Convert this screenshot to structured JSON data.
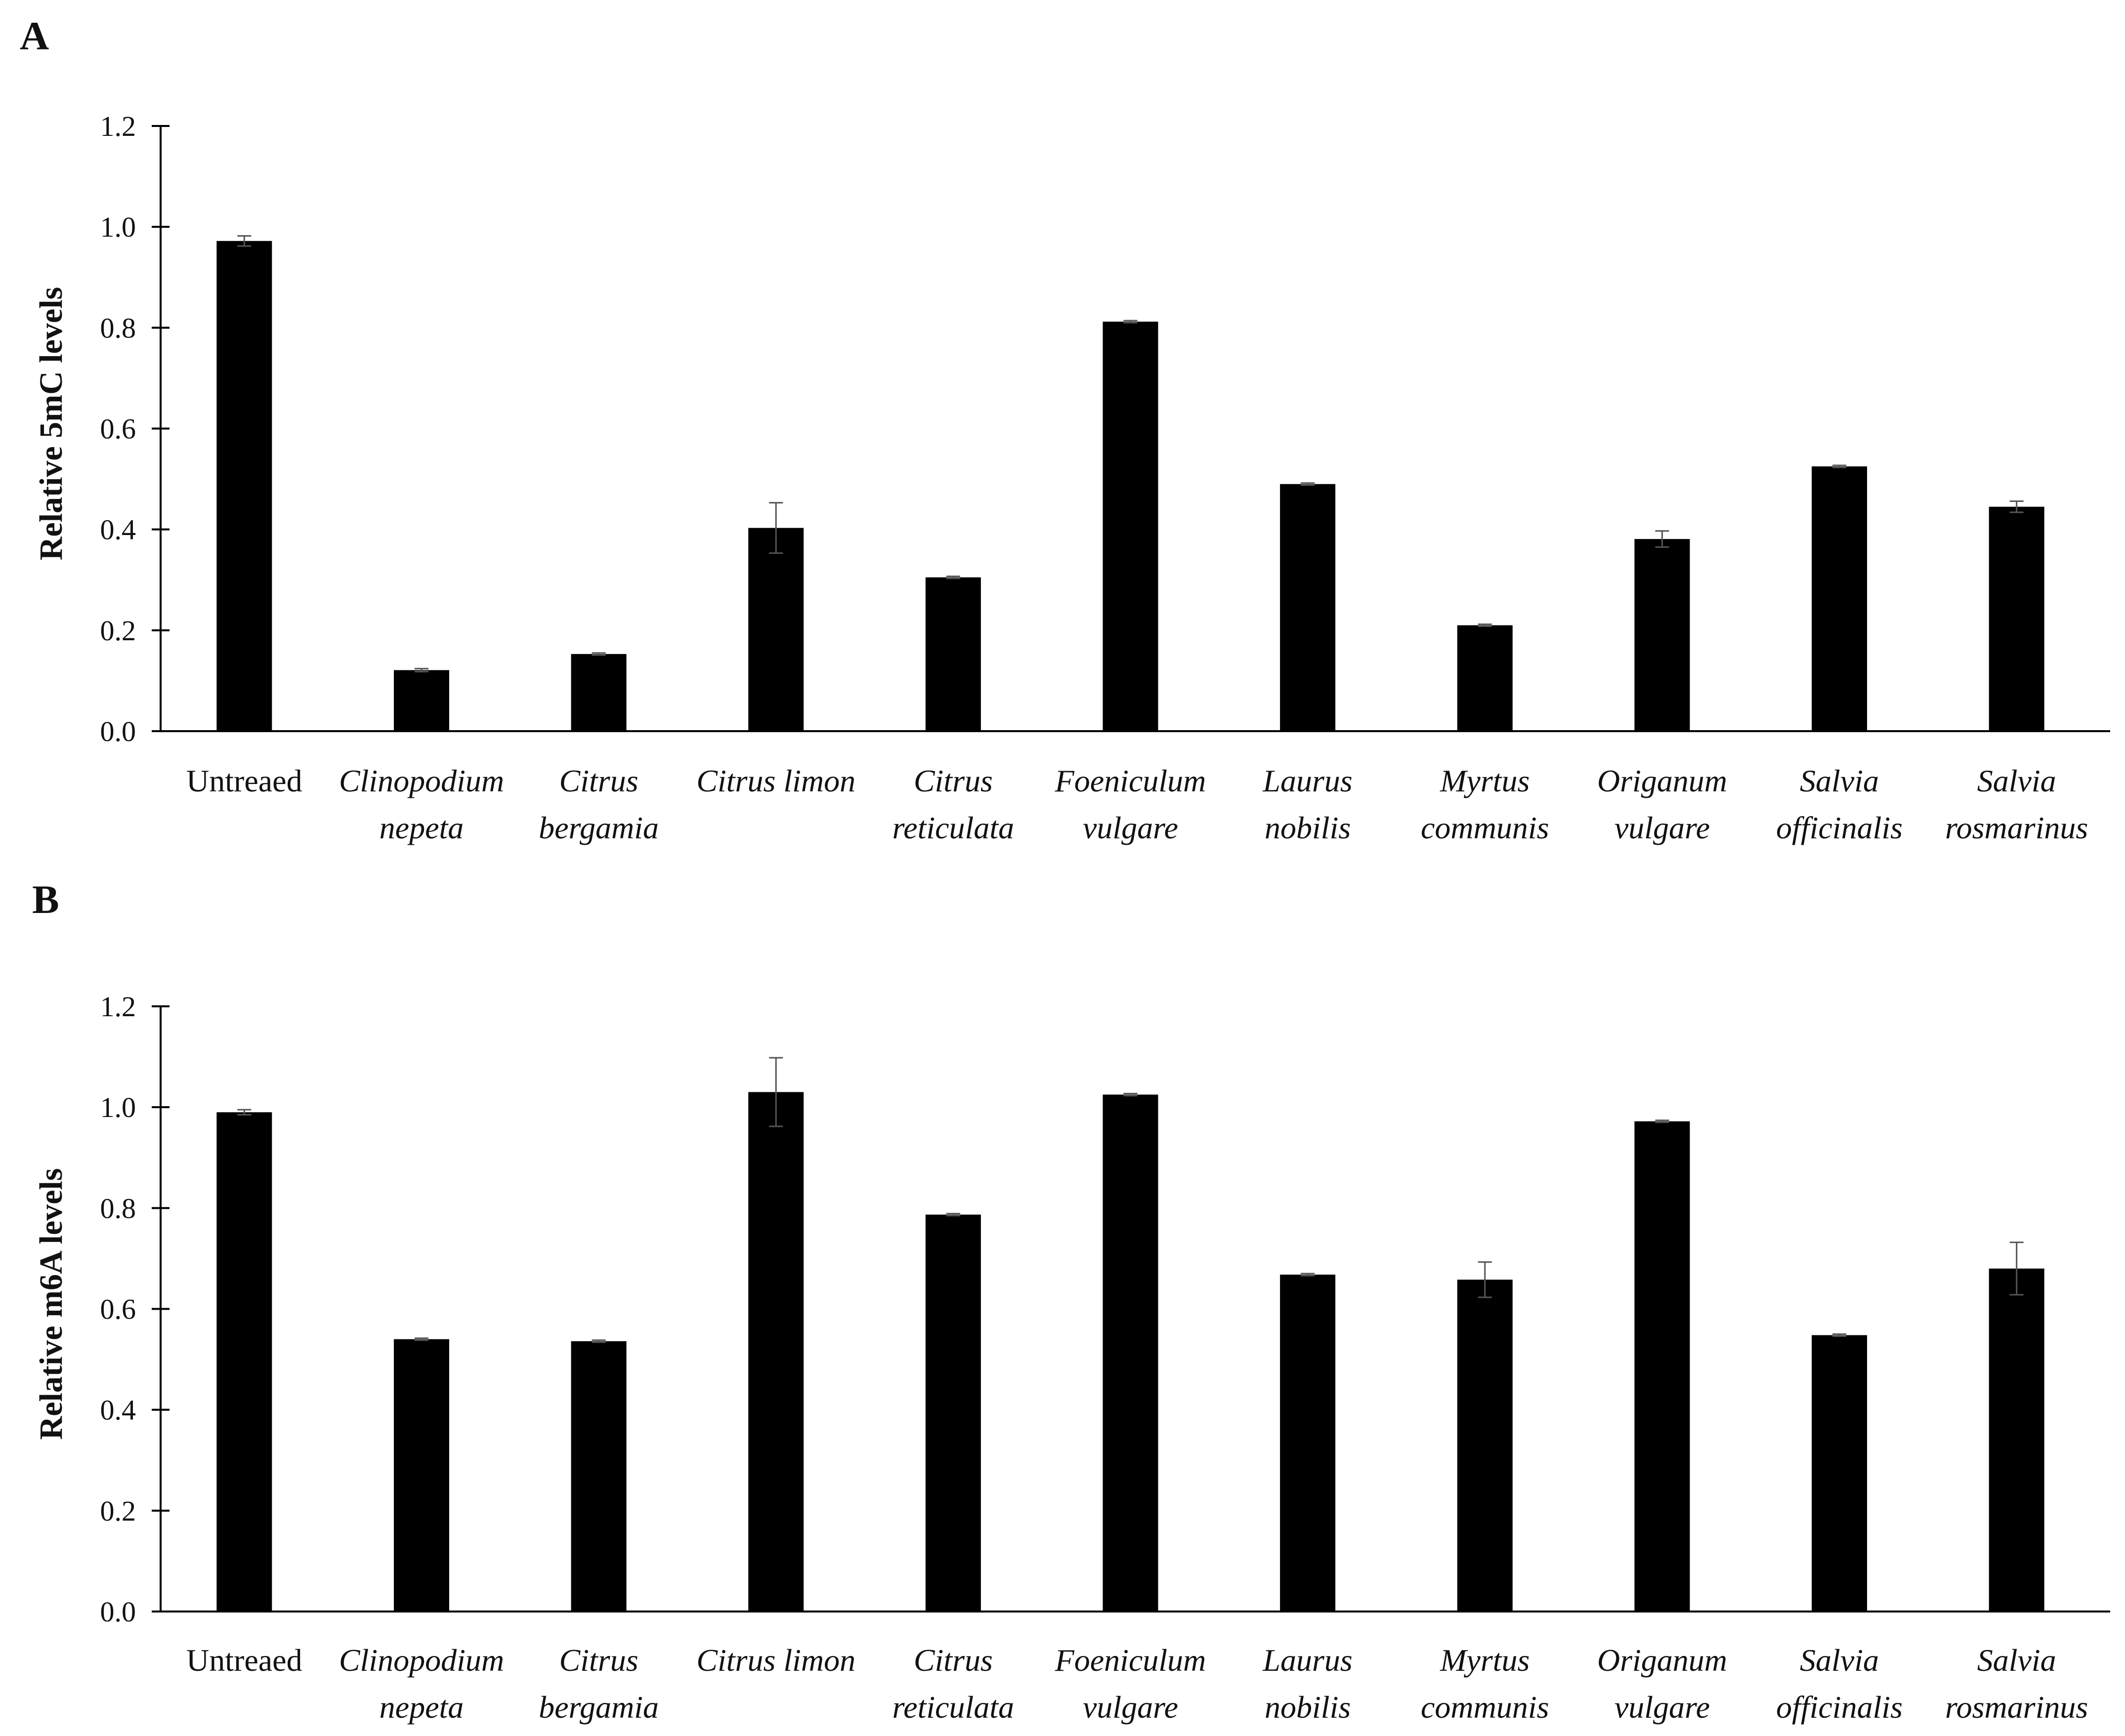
{
  "panels": [
    {
      "label": "A"
    },
    {
      "label": "B"
    }
  ],
  "chart_data": [
    {
      "type": "bar",
      "panel": "A",
      "ylabel": "Relative 5mC levels",
      "ylim": [
        0,
        1.2
      ],
      "yticks": [
        "0.0",
        "0.2",
        "0.4",
        "0.6",
        "0.8",
        "1.0",
        "1.2"
      ],
      "categories": [
        {
          "lines": [
            "Untreaed"
          ],
          "italic": false
        },
        {
          "lines": [
            "Clinopodium",
            "nepeta"
          ],
          "italic": true
        },
        {
          "lines": [
            "Citrus",
            "bergamia"
          ],
          "italic": true
        },
        {
          "lines": [
            "Citrus limon"
          ],
          "italic": true
        },
        {
          "lines": [
            "Citrus",
            "reticulata"
          ],
          "italic": true
        },
        {
          "lines": [
            "Foeniculum",
            "vulgare"
          ],
          "italic": true
        },
        {
          "lines": [
            "Laurus",
            "nobilis"
          ],
          "italic": true
        },
        {
          "lines": [
            "Myrtus",
            "communis"
          ],
          "italic": true
        },
        {
          "lines": [
            "Origanum",
            "vulgare"
          ],
          "italic": true
        },
        {
          "lines": [
            "Salvia",
            "officinalis"
          ],
          "italic": true
        },
        {
          "lines": [
            "Salvia",
            "rosmarinus"
          ],
          "italic": true
        }
      ],
      "values": [
        0.972,
        0.121,
        0.153,
        0.403,
        0.305,
        0.812,
        0.49,
        0.21,
        0.381,
        0.525,
        0.445
      ],
      "errors": [
        0.01,
        0.003,
        0.002,
        0.05,
        0.002,
        0.002,
        0.002,
        0.002,
        0.016,
        0.002,
        0.011
      ],
      "grid": false,
      "legend": "none",
      "bar_color": "#000000"
    },
    {
      "type": "bar",
      "panel": "B",
      "ylabel": "Relative m6A levels",
      "ylim": [
        0,
        1.2
      ],
      "yticks": [
        "0.0",
        "0.2",
        "0.4",
        "0.6",
        "0.8",
        "1.0",
        "1.2"
      ],
      "categories": [
        {
          "lines": [
            "Untreaed"
          ],
          "italic": false
        },
        {
          "lines": [
            "Clinopodium",
            "nepeta"
          ],
          "italic": true
        },
        {
          "lines": [
            "Citrus",
            "bergamia"
          ],
          "italic": true
        },
        {
          "lines": [
            "Citrus limon"
          ],
          "italic": true
        },
        {
          "lines": [
            "Citrus",
            "reticulata"
          ],
          "italic": true
        },
        {
          "lines": [
            "Foeniculum",
            "vulgare"
          ],
          "italic": true
        },
        {
          "lines": [
            "Laurus",
            "nobilis"
          ],
          "italic": true
        },
        {
          "lines": [
            "Myrtus",
            "communis"
          ],
          "italic": true
        },
        {
          "lines": [
            "Origanum",
            "vulgare"
          ],
          "italic": true
        },
        {
          "lines": [
            "Salvia",
            "officinalis"
          ],
          "italic": true
        },
        {
          "lines": [
            "Salvia",
            "rosmarinus"
          ],
          "italic": true
        }
      ],
      "values": [
        0.99,
        0.54,
        0.536,
        1.03,
        0.787,
        1.025,
        0.668,
        0.658,
        0.972,
        0.548,
        0.68
      ],
      "errors": [
        0.005,
        0.002,
        0.002,
        0.068,
        0.002,
        0.002,
        0.002,
        0.035,
        0.002,
        0.002,
        0.052
      ],
      "grid": false,
      "legend": "none",
      "bar_color": "#000000"
    }
  ]
}
